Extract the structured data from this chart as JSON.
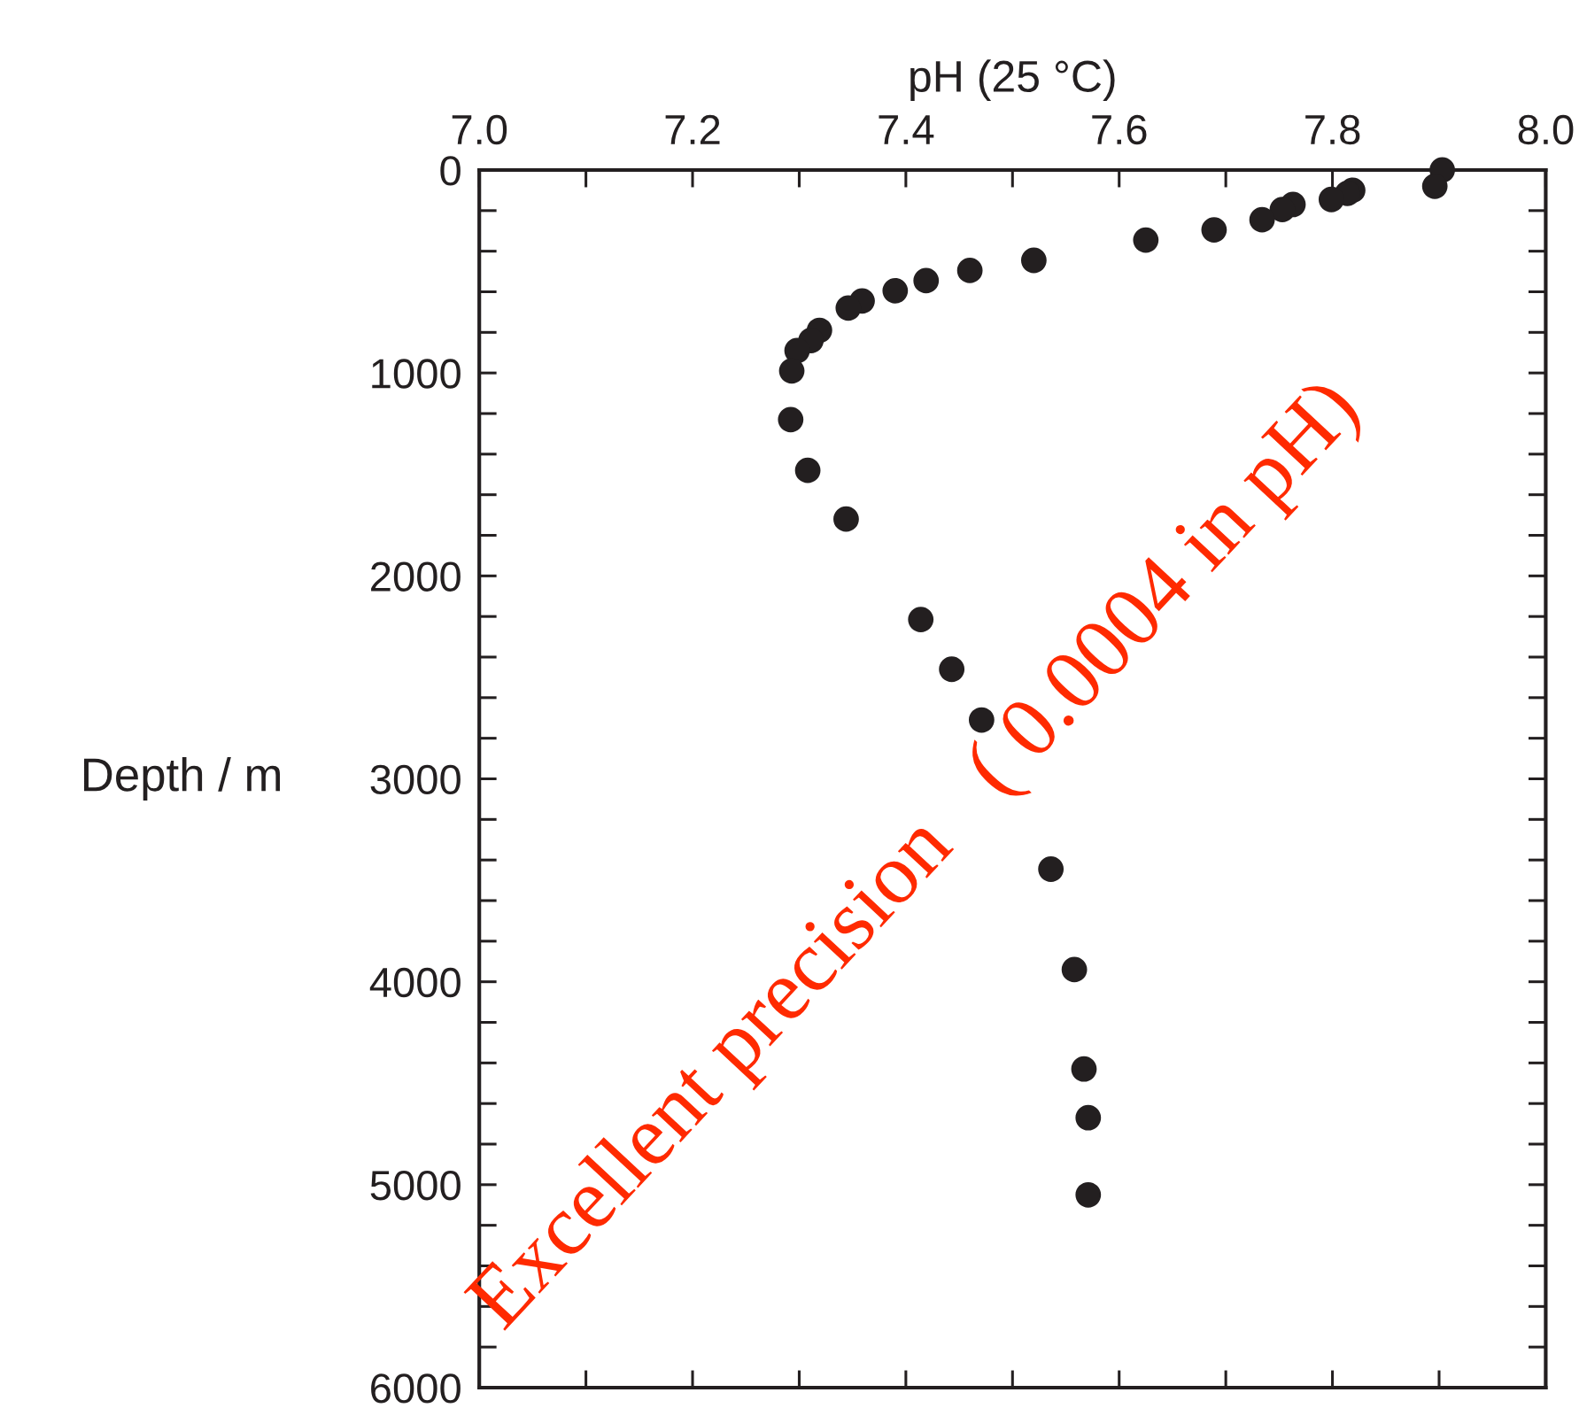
{
  "chart_data": {
    "type": "scatter",
    "xlabel": "pH (25 °C)",
    "ylabel": "Depth / m",
    "x": [
      7.903,
      7.896,
      7.819,
      7.814,
      7.799,
      7.763,
      7.753,
      7.734,
      7.689,
      7.625,
      7.52,
      7.46,
      7.419,
      7.39,
      7.359,
      7.346,
      7.319,
      7.311,
      7.298,
      7.293,
      7.292,
      7.308,
      7.344,
      7.414,
      7.443,
      7.471,
      7.536,
      7.558,
      7.567,
      7.571,
      7.571
    ],
    "series": [
      {
        "color": "#231f20",
        "values": [
          0,
          80,
          100,
          115,
          145,
          170,
          195,
          245,
          295,
          345,
          445,
          495,
          545,
          595,
          645,
          680,
          790,
          840,
          890,
          990,
          1230,
          1480,
          1720,
          2215,
          2460,
          2710,
          3445,
          3940,
          4430,
          4670,
          5050
        ]
      }
    ],
    "marker": "circle",
    "xlim": [
      7.0,
      8.0
    ],
    "xticks": [
      {
        "value": 7.0,
        "label": "7.0"
      },
      {
        "value": 7.2,
        "label": "7.2"
      },
      {
        "value": 7.4,
        "label": "7.4"
      },
      {
        "value": 7.6,
        "label": "7.6"
      },
      {
        "value": 7.8,
        "label": "7.8"
      },
      {
        "value": 8.0,
        "label": "8.0"
      }
    ],
    "ylim": [
      6000,
      0
    ],
    "yticks": [
      0,
      1000,
      2000,
      3000,
      4000,
      5000,
      6000
    ],
    "grid": false,
    "legend": false,
    "annotations": [
      "Excellent precision　( 0.0004 in pH)"
    ]
  }
}
